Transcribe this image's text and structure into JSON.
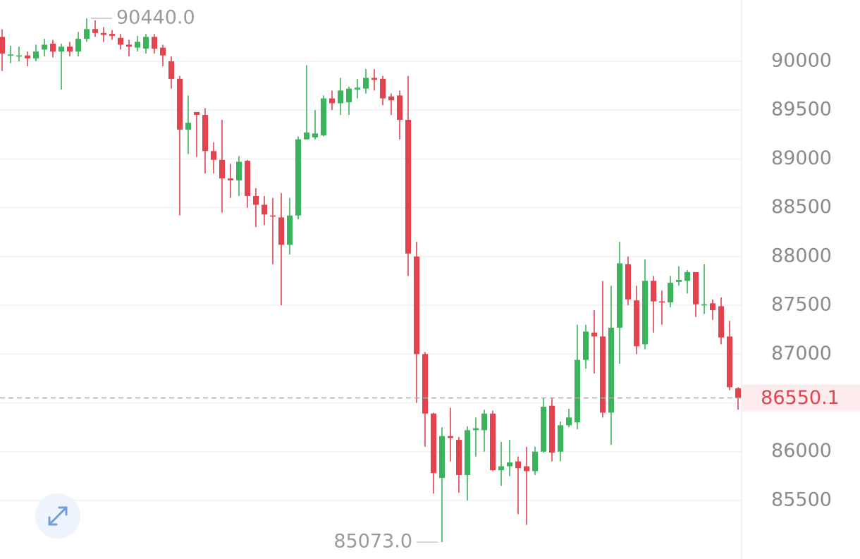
{
  "chart_data": {
    "type": "candlestick",
    "up_color": "#3bb35c",
    "down_color": "#e2434f",
    "ylim": [
      84900,
      90628
    ],
    "yticks": [
      85500,
      86000,
      86500,
      87000,
      87500,
      88000,
      88500,
      89000,
      89500,
      90000
    ],
    "grid": true,
    "open": [
      90250,
      90060,
      90060,
      90060,
      90030,
      90120,
      90180,
      90100,
      90150,
      90100,
      90230,
      90330,
      90290,
      90280,
      90240,
      90170,
      90140,
      90130,
      90250,
      90140,
      90000,
      89820,
      89300,
      89480,
      89450,
      89080,
      88990,
      88800,
      88780,
      88980,
      88620,
      88530,
      88420,
      88400,
      88120,
      88420,
      89200,
      89220,
      89240,
      89620,
      89570,
      89580,
      89710,
      89720,
      89830,
      89820,
      89640,
      89650,
      89400,
      88000,
      87000,
      86390,
      85730,
      86160,
      86120,
      85760,
      86220,
      86220,
      86390,
      85810,
      85850,
      85900,
      85850,
      85800,
      86000,
      86470,
      86000,
      86270,
      86300,
      86940,
      87220,
      87180,
      86400,
      87270,
      87920,
      87550,
      87100,
      87750,
      87540,
      87530,
      87740,
      87750,
      87840,
      87500,
      87520,
      87490,
      87180,
      86650
    ],
    "high": [
      90330,
      90160,
      90150,
      90100,
      90170,
      90230,
      90220,
      90180,
      90200,
      90300,
      90440,
      90420,
      90350,
      90320,
      90280,
      90220,
      90260,
      90280,
      90280,
      90170,
      90050,
      89850,
      89650,
      89480,
      89520,
      89170,
      89400,
      88950,
      89030,
      88990,
      88700,
      88620,
      88600,
      88650,
      88600,
      89230,
      89960,
      89500,
      89650,
      89700,
      89830,
      89740,
      89820,
      89920,
      89920,
      89850,
      89670,
      89700,
      89850,
      88150,
      87020,
      86400,
      86250,
      86450,
      86150,
      86260,
      86350,
      86430,
      86420,
      86100,
      86120,
      85950,
      86050,
      86050,
      86550,
      86550,
      86310,
      86440,
      87300,
      87300,
      87450,
      87750,
      87700,
      88150,
      88000,
      87700,
      87970,
      87800,
      87650,
      87800,
      87900,
      87860,
      87840,
      87920,
      87560,
      87580,
      87340,
      86660
    ],
    "low": [
      89900,
      89980,
      90000,
      89950,
      90000,
      90050,
      90040,
      89710,
      90050,
      90050,
      90200,
      90250,
      90200,
      90220,
      90120,
      90050,
      90100,
      90080,
      90080,
      89950,
      89720,
      88420,
      89050,
      89020,
      88850,
      88850,
      88450,
      88600,
      88620,
      88500,
      88300,
      88320,
      87920,
      87500,
      88020,
      88380,
      89200,
      89200,
      89230,
      89500,
      89450,
      89450,
      89620,
      89670,
      89700,
      89550,
      89450,
      89200,
      87800,
      86500,
      86050,
      85570,
      85073,
      85900,
      85580,
      85500,
      85950,
      86000,
      85800,
      85650,
      85750,
      85360,
      85250,
      85760,
      85990,
      85900,
      85900,
      86250,
      86230,
      86850,
      86800,
      86350,
      86070,
      86900,
      87500,
      87000,
      87050,
      87220,
      87300,
      87480,
      87700,
      87620,
      87380,
      87410,
      87350,
      87100,
      86630,
      86430
    ],
    "close": [
      90080,
      90070,
      90060,
      90030,
      90100,
      90170,
      90100,
      90150,
      90100,
      90230,
      90330,
      90290,
      90270,
      90260,
      90170,
      90150,
      90200,
      90250,
      90130,
      90060,
      89820,
      89300,
      89370,
      89450,
      89080,
      88990,
      88800,
      88780,
      88970,
      88620,
      88530,
      88430,
      88410,
      88120,
      88420,
      89200,
      89270,
      89260,
      89620,
      89570,
      89700,
      89720,
      89730,
      89830,
      89810,
      89620,
      89600,
      89400,
      88030,
      87000,
      86390,
      85780,
      86160,
      86140,
      85760,
      86220,
      86240,
      86390,
      85810,
      85850,
      85890,
      85830,
      85800,
      86000,
      86460,
      85990,
      86270,
      86350,
      86940,
      87230,
      87180,
      86400,
      87270,
      87930,
      87560,
      87080,
      87750,
      87540,
      87530,
      87730,
      87760,
      87840,
      87510,
      87510,
      87450,
      87170,
      86660,
      86550.1
    ],
    "high_marker": {
      "value": 90440,
      "label": "90440.0"
    },
    "low_marker": {
      "value": 85073,
      "label": "85073.0"
    },
    "last_price": {
      "value": 86550.1,
      "label": "86550.1"
    }
  }
}
